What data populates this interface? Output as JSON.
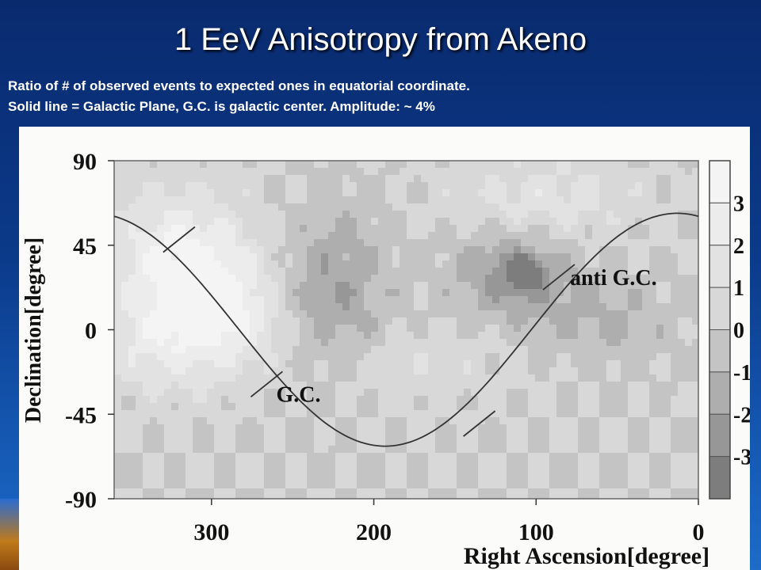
{
  "slide": {
    "title": "1 EeV Anisotropy from Akeno",
    "subtitle_line1": "Ratio of # of observed events to expected ones in equatorial coordinate.",
    "subtitle_line2": "Solid line = Galactic Plane, G.C. is galactic center. Amplitude: ~ 4%"
  },
  "chart_data": {
    "type": "heatmap",
    "xlabel": "Right Ascension[degree]",
    "ylabel": "Declination[degree]",
    "xlim": [
      360,
      0
    ],
    "ylim": [
      -90,
      90
    ],
    "x_ticks": [
      "300",
      "200",
      "100",
      "0"
    ],
    "x_tick_values": [
      300,
      200,
      100,
      0
    ],
    "y_ticks": [
      "90",
      "45",
      "0",
      "-45",
      "-90"
    ],
    "y_tick_values": [
      90,
      45,
      0,
      -45,
      -90
    ],
    "colorbar": {
      "labels": [
        "3",
        "2",
        "1",
        "0",
        "-1",
        "-2",
        "-3"
      ],
      "label_values": [
        3,
        2,
        1,
        0,
        -1,
        -2,
        -3
      ],
      "levels": [
        {
          "min": 3,
          "color": "#f4f4f4"
        },
        {
          "min": 2,
          "color": "#ececec"
        },
        {
          "min": 1,
          "color": "#e2e2e2"
        },
        {
          "min": 0,
          "color": "#d8d8d8"
        },
        {
          "min": -1,
          "color": "#c4c4c4"
        },
        {
          "min": -2,
          "color": "#aeaeae"
        },
        {
          "min": -3,
          "color": "#979797"
        },
        {
          "min": -4,
          "color": "#7d7d7d"
        }
      ],
      "range": [
        -4,
        4
      ]
    },
    "field_regions": [
      {
        "ra": 320,
        "dec": 40,
        "sigma_ra": 30,
        "sigma_dec": 25,
        "amplitude": 3
      },
      {
        "ra": 290,
        "dec": 10,
        "sigma_ra": 25,
        "sigma_dec": 20,
        "amplitude": 2.5
      },
      {
        "ra": 330,
        "dec": -5,
        "sigma_ra": 30,
        "sigma_dec": 20,
        "amplitude": 2
      },
      {
        "ra": 225,
        "dec": 20,
        "sigma_ra": 22,
        "sigma_dec": 30,
        "amplitude": -2
      },
      {
        "ra": 115,
        "dec": 30,
        "sigma_ra": 25,
        "sigma_dec": 15,
        "amplitude": -2.5
      },
      {
        "ra": 107,
        "dec": 30,
        "sigma_ra": 8,
        "sigma_dec": 6,
        "amplitude": -2.5
      },
      {
        "ra": 95,
        "dec": 70,
        "sigma_ra": 40,
        "sigma_dec": 15,
        "amplitude": 1.5
      },
      {
        "ra": 60,
        "dec": 5,
        "sigma_ra": 30,
        "sigma_dec": 15,
        "amplitude": -1.2
      },
      {
        "ra": 180,
        "dec": -20,
        "sigma_ra": 50,
        "sigma_dec": 15,
        "amplitude": 0.8
      }
    ],
    "galactic_plane": {
      "min_dec": -62,
      "min_dec_ra": 193,
      "max_dec": 62
    },
    "annotations": [
      {
        "text": "G.C.",
        "ra": 266,
        "dec": -29
      },
      {
        "text": "anti G.C.",
        "ra": 86,
        "dec": 28
      }
    ],
    "tick_marks": [
      {
        "ra": 266,
        "dec": -29
      },
      {
        "ra": 86,
        "dec": 28
      },
      {
        "ra": 320,
        "dec": 48
      },
      {
        "ra": 135,
        "dec": -50
      }
    ]
  }
}
